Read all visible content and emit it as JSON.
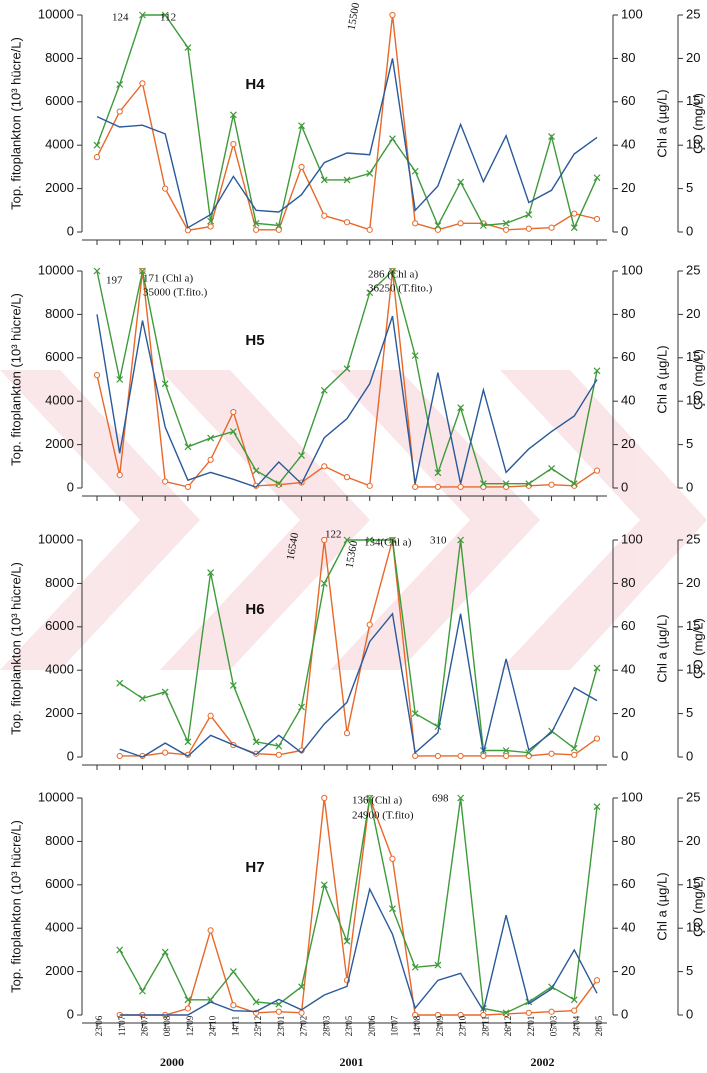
{
  "chart_data": [
    {
      "type": "line",
      "title": "H4",
      "ylabel": "Top. fitoplankton (10³ hücre/L)",
      "y2label": "Chl a (µg/L)",
      "y3label": "ÇO (mg/L)",
      "ylim": [
        0,
        10000
      ],
      "yticks": [
        0,
        2000,
        4000,
        6000,
        8000,
        10000
      ],
      "y2lim": [
        0,
        100
      ],
      "y2ticks": [
        0,
        20,
        40,
        60,
        80,
        100
      ],
      "y3lim": [
        0,
        25
      ],
      "y3ticks": [
        0,
        5,
        10,
        15,
        20,
        25
      ],
      "series": [
        {
          "color": "#e8682a",
          "marker": "circle",
          "axis": "y",
          "values": [
            3450,
            5550,
            6850,
            2000,
            80,
            250,
            4050,
            100,
            100,
            3000,
            750,
            450,
            100,
            10000,
            400,
            100,
            400,
            400,
            100,
            150,
            200,
            850,
            600
          ]
        },
        {
          "color": "#3e9a3a",
          "marker": "x",
          "axis": "y2",
          "values": [
            40,
            68,
            100,
            100,
            85,
            5,
            54,
            4,
            3,
            49,
            24,
            24,
            27,
            43,
            28,
            3,
            23,
            3,
            4,
            8,
            44,
            2,
            25
          ]
        },
        {
          "color": "#2a5a9a",
          "marker": "none",
          "axis": "y3",
          "values": [
            13.3,
            12.1,
            12.3,
            11.3,
            0.5,
            2,
            6.4,
            2.5,
            2.3,
            4.3,
            8,
            9.1,
            8.9,
            20,
            2.5,
            5.3,
            12.4,
            5.8,
            11.1,
            3.4,
            4.8,
            9,
            10.9
          ]
        }
      ],
      "annotations": [
        "124",
        "112",
        "15500"
      ]
    },
    {
      "type": "line",
      "title": "H5",
      "ylabel": "Top. fitoplankton (10³ hücre/L)",
      "y2label": "Chl a (µg/L)",
      "y3label": "ÇO (mg/L)",
      "ylim": [
        0,
        10000
      ],
      "yticks": [
        0,
        2000,
        4000,
        6000,
        8000,
        10000
      ],
      "y2lim": [
        0,
        100
      ],
      "y2ticks": [
        0,
        20,
        40,
        60,
        80,
        100
      ],
      "y3lim": [
        0,
        25
      ],
      "y3ticks": [
        0,
        5,
        10,
        15,
        20,
        25
      ],
      "series": [
        {
          "color": "#e8682a",
          "marker": "circle",
          "axis": "y",
          "values": [
            5200,
            600,
            10000,
            300,
            50,
            1300,
            3500,
            100,
            150,
            250,
            1000,
            500,
            100,
            10000,
            50,
            50,
            50,
            50,
            50,
            100,
            150,
            100,
            800
          ]
        },
        {
          "color": "#3e9a3a",
          "marker": "x",
          "axis": "y2",
          "values": [
            100,
            50,
            100,
            48,
            19,
            23,
            26,
            8,
            2,
            15,
            45,
            55,
            90,
            100,
            61,
            7,
            37,
            2,
            2,
            2,
            9,
            2,
            54
          ]
        },
        {
          "color": "#2a5a9a",
          "marker": "none",
          "axis": "y3",
          "values": [
            20,
            4,
            19.3,
            7,
            0.9,
            1.8,
            1,
            0.1,
            3,
            0.5,
            5.8,
            8,
            12,
            19.8,
            0.5,
            13.3,
            0.5,
            11.3,
            1.8,
            4.5,
            6.5,
            8.3,
            12.5
          ]
        }
      ],
      "annotations": [
        "197",
        "171 (Chl a)",
        "35000 (T.fito.)",
        "286 (Chl a)",
        "36250 (T.fito.)"
      ]
    },
    {
      "type": "line",
      "title": "H6",
      "ylabel": "Top. fitoplankton (10³ hücre/L)",
      "y2label": "Chl a (µg/L)",
      "y3label": "ÇO (mg/L)",
      "ylim": [
        0,
        10000
      ],
      "yticks": [
        0,
        2000,
        4000,
        6000,
        8000,
        10000
      ],
      "y2lim": [
        0,
        100
      ],
      "y2ticks": [
        0,
        20,
        40,
        60,
        80,
        100
      ],
      "y3lim": [
        0,
        25
      ],
      "y3ticks": [
        0,
        5,
        10,
        15,
        20,
        25
      ],
      "series": [
        {
          "color": "#e8682a",
          "marker": "circle",
          "axis": "y",
          "values": [
            null,
            50,
            50,
            200,
            100,
            1900,
            550,
            150,
            100,
            300,
            10000,
            1100,
            6100,
            10000,
            50,
            50,
            50,
            50,
            50,
            50,
            150,
            100,
            850
          ]
        },
        {
          "color": "#3e9a3a",
          "marker": "x",
          "axis": "y2",
          "values": [
            null,
            34,
            27,
            30,
            7,
            85,
            33,
            7,
            5,
            23,
            80,
            100,
            100,
            100,
            20,
            14,
            100,
            3,
            3,
            2,
            12,
            4,
            41
          ]
        },
        {
          "color": "#2a5a9a",
          "marker": "none",
          "axis": "y3",
          "values": [
            null,
            0.9,
            0,
            1.6,
            0.1,
            2.5,
            1.4,
            0.3,
            2.5,
            0.5,
            3.8,
            6.3,
            13.3,
            16.5,
            0.5,
            2.8,
            16.5,
            0.5,
            11.3,
            0.8,
            2.8,
            8,
            6.5
          ]
        }
      ],
      "annotations": [
        "16540",
        "122",
        "15360",
        "134(Chl a)",
        "310"
      ]
    },
    {
      "type": "line",
      "title": "H7",
      "ylabel": "Top. fitoplankton (10³ hücre/L)",
      "y2label": "Chl a (µg/L)",
      "y3label": "ÇO (mg/L)",
      "ylim": [
        0,
        10000
      ],
      "yticks": [
        0,
        2000,
        4000,
        6000,
        8000,
        10000
      ],
      "y2lim": [
        0,
        100
      ],
      "y2ticks": [
        0,
        20,
        40,
        60,
        80,
        100
      ],
      "y3lim": [
        0,
        25
      ],
      "y3ticks": [
        0,
        5,
        10,
        15,
        20,
        25
      ],
      "series": [
        {
          "color": "#e8682a",
          "marker": "circle",
          "axis": "y",
          "values": [
            null,
            0,
            0,
            0,
            300,
            3900,
            450,
            100,
            150,
            100,
            10000,
            1600,
            10000,
            7200,
            0,
            0,
            0,
            0,
            50,
            100,
            150,
            200,
            1600
          ]
        },
        {
          "color": "#3e9a3a",
          "marker": "x",
          "axis": "y2",
          "values": [
            null,
            30,
            11,
            29,
            7,
            7,
            20,
            6,
            5,
            13,
            60,
            34,
            100,
            49,
            22,
            23,
            100,
            3,
            1,
            6,
            13,
            7,
            96
          ]
        },
        {
          "color": "#2a5a9a",
          "marker": "none",
          "axis": "y3",
          "values": [
            null,
            0,
            0,
            0,
            0,
            1.5,
            0.5,
            0.4,
            1.8,
            0.6,
            2.3,
            3.3,
            14.5,
            9.3,
            0.8,
            4,
            4.8,
            0.5,
            11.5,
            1.3,
            3,
            7.5,
            2.5
          ]
        }
      ],
      "annotations": [
        "136 (Chl a)",
        "24900 (T.fito)",
        "698"
      ],
      "categories": [
        "23/06",
        "11/07",
        "26/07",
        "08/08",
        "12/09",
        "24/10",
        "14/11",
        "25/12",
        "23/01",
        "27/02",
        "28/03",
        "23/05",
        "20/06",
        "10/07",
        "14/08",
        "25/09",
        "23/10",
        "28/11",
        "26/12",
        "22/01",
        "05/03",
        "24/04",
        "28/05"
      ],
      "years": [
        "2000",
        "2001",
        "2002"
      ]
    }
  ]
}
